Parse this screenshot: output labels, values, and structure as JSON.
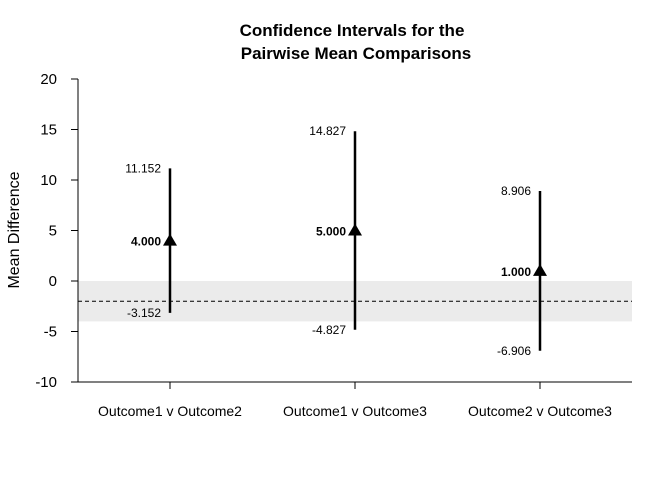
{
  "chart_data": {
    "type": "errorbar",
    "title_lines": [
      "Confidence Intervals for the",
      "Pairwise Mean Comparisons"
    ],
    "ylabel": "Mean Difference",
    "xlabel": "",
    "ylim": [
      -10,
      20
    ],
    "yticks": [
      -10,
      -5,
      0,
      5,
      10,
      15,
      20
    ],
    "categories": [
      "Outcome1 v Outcome2",
      "Outcome1 v Outcome3",
      "Outcome2 v Outcome3"
    ],
    "means": [
      4.0,
      5.0,
      1.0
    ],
    "lower": [
      -3.152,
      -4.827,
      -6.906
    ],
    "upper": [
      11.152,
      14.827,
      8.906
    ],
    "mean_labels": [
      "4.000",
      "5.000",
      "1.000"
    ],
    "lower_labels": [
      "-3.152",
      "-4.827",
      "-6.906"
    ],
    "upper_labels": [
      "11.152",
      "14.827",
      "8.906"
    ],
    "shaded_band": [
      -4,
      0
    ],
    "reference_line": -2,
    "band_color": "#ebebeb",
    "line_color": "#000000"
  }
}
